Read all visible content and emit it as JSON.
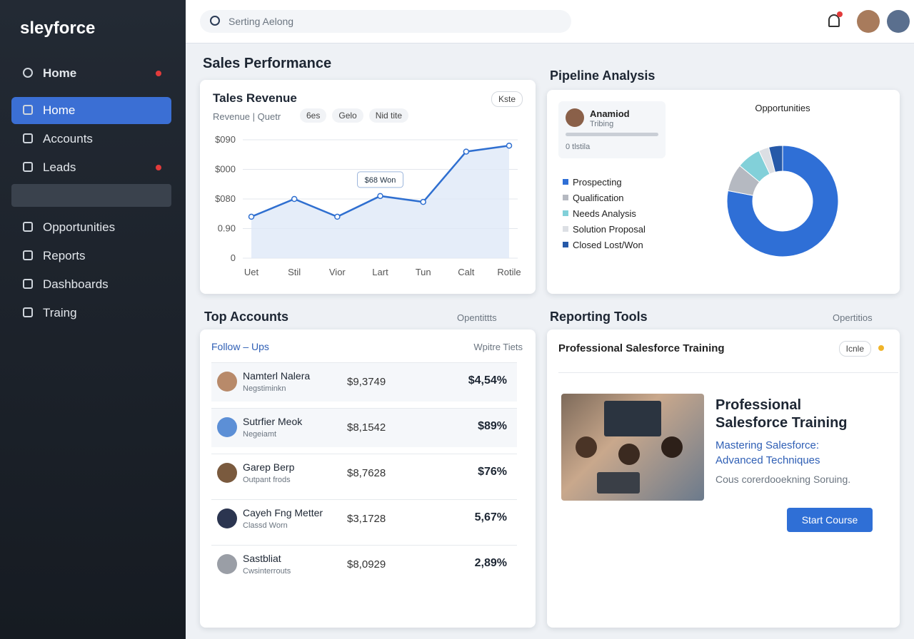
{
  "app": {
    "brand": "sleyforce",
    "search": "Serting Aelong"
  },
  "sidebar": {
    "header": "Home",
    "items": [
      "Home",
      "Accounts",
      "Leads",
      "Opportunities",
      "Reports",
      "Dashboards",
      "Traing"
    ]
  },
  "sales_performance": {
    "title": "Sales Performance"
  },
  "revenue_chart": {
    "type": "line",
    "title": "Tales Revenue",
    "subtitle": "Revenue | Quetr",
    "chips": [
      "6es",
      "Gelo",
      "Nid tite"
    ],
    "button": "Kste",
    "categories": [
      "Uet",
      "Stil",
      "Vior",
      "Lart",
      "Tun",
      "Calt",
      "Rotile"
    ],
    "values": [
      1.4,
      2.0,
      1.4,
      2.1,
      1.9,
      3.6,
      3.8
    ],
    "color": "#2f6fd0",
    "ylim": [
      0,
      4
    ],
    "yticks": [
      0,
      {
        "value": 1,
        "label": "0.90"
      },
      {
        "value": 2,
        "label": "$080"
      },
      {
        "value": 3,
        "label": "$000"
      },
      {
        "value": 4,
        "label": "$090"
      }
    ],
    "grid": true,
    "annotation": "$68 Won"
  },
  "pipeline": {
    "title": "Pipeline Analysis",
    "profile": {
      "name": "Anamiod",
      "role": "Tribing",
      "link": "0 tlstila"
    }
  },
  "pipeline_chart": {
    "type": "pie",
    "title": "Opportunities",
    "categories": [
      "Prospecting",
      "Qualification",
      "Needs Analysis",
      "Solution Proposal",
      "Closed Lost/Won"
    ],
    "values": [
      78,
      8,
      7,
      3,
      4
    ],
    "colors": [
      "#2f6fd6",
      "#b5b9c1",
      "#82d0d9",
      "#dcdfe4",
      "#2659a8"
    ]
  },
  "top_accounts": {
    "title": "Top Accounts",
    "action": "Opentittts",
    "subtitle": "Follow – Ups",
    "column": "Wpitre Tiets",
    "rows": [
      [
        "Namterl Nalera",
        "Negstiminkn",
        "$9,3749",
        "$4,54%"
      ],
      [
        "Sutrfier Meok",
        "Negeiamt",
        "$8,1542",
        "$89%"
      ],
      [
        "Garep Berp",
        "Outpant frods",
        "$8,7628",
        "$76%"
      ],
      [
        "Cayeh Fng Metter",
        "Classd Worn",
        "$3,1728",
        "5,67%"
      ],
      [
        "Sastbliat",
        "Cwsinterrouts",
        "$8,0929",
        "2,89%"
      ]
    ]
  },
  "reporting_tools": {
    "title": "Reporting Tools",
    "action": "Opertitios",
    "card_title": "Professional Salesforce Training",
    "button": "Icnle",
    "course_title": "Professional Salesforce Training",
    "course_subtitle": "Mastering Salesforce: Advanced Techniques",
    "course_desc": "Cous corerdooekning Soruing.",
    "cta": "Start Course"
  }
}
